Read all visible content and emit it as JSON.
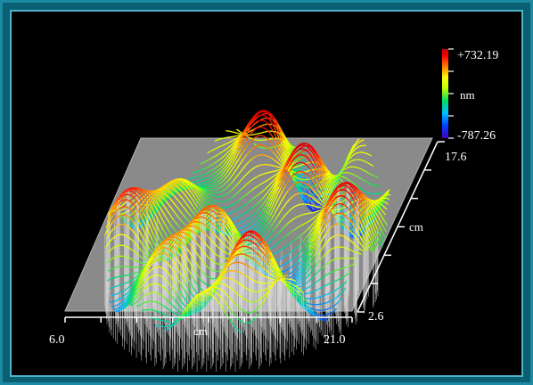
{
  "chart_data": {
    "type": "surface-3d",
    "title": "",
    "x_axis": {
      "label": "cm",
      "range": [
        6.0,
        21.0
      ],
      "tick_labels": [
        "6.0",
        "21.0"
      ]
    },
    "y_axis": {
      "label": "cm",
      "range": [
        2.6,
        17.6
      ],
      "tick_labels": [
        "2.6",
        "17.6"
      ]
    },
    "z_axis": {
      "label": "nm",
      "range": [
        -787.26,
        732.19
      ],
      "max_label": "+732.19",
      "min_label": "-787.26"
    },
    "colormap": [
      "#4000c0",
      "#0040ff",
      "#00c0ff",
      "#00e060",
      "#c0ff00",
      "#ffff00",
      "#ff8000",
      "#ff0000",
      "#c00000"
    ],
    "grid": false,
    "legend": "colorbar-top-right"
  }
}
